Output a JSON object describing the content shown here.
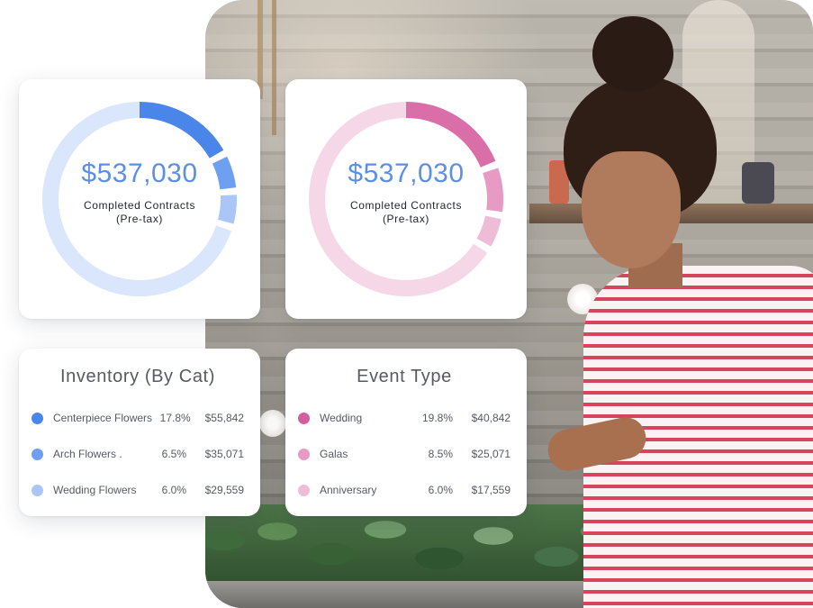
{
  "cards": {
    "contracts_blue": {
      "value": "$537,030",
      "label_line1": "Completed Contracts",
      "label_line2": "(Pre-tax)",
      "colors": [
        "#4a86ea",
        "#6f9ff0",
        "#a9c6f7",
        "#d9e6fb"
      ],
      "segments": [
        0.178,
        0.065,
        0.06,
        0.697
      ]
    },
    "contracts_pink": {
      "value": "$537,030",
      "label_line1": "Completed Contracts",
      "label_line2": "(Pre-tax)",
      "colors": [
        "#da6ea9",
        "#e79ac4",
        "#efbcd8",
        "#f5d7e7"
      ],
      "segments": [
        0.198,
        0.085,
        0.06,
        0.657
      ]
    }
  },
  "inventory": {
    "title": "Inventory (By Cat)",
    "items": [
      {
        "name": "Centerpiece Flowers",
        "percent": "17.8%",
        "amount": "$55,842",
        "color": "#4a86ea"
      },
      {
        "name": "Arch Flowers .",
        "percent": "6.5%",
        "amount": "$35,071",
        "color": "#6f9ff0"
      },
      {
        "name": "Wedding Flowers",
        "percent": "6.0%",
        "amount": "$29,559",
        "color": "#a9c6f7"
      }
    ]
  },
  "event_type": {
    "title": "Event Type",
    "items": [
      {
        "name": "Wedding",
        "percent": "19.8%",
        "amount": "$40,842",
        "color": "#d45fa0"
      },
      {
        "name": "Galas",
        "percent": "8.5%",
        "amount": "$25,071",
        "color": "#e79ac4"
      },
      {
        "name": "Anniversary",
        "percent": "6.0%",
        "amount": "$17,559",
        "color": "#efbcd8"
      }
    ]
  }
}
